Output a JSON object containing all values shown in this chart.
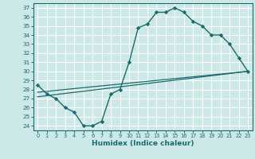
{
  "xlabel": "Humidex (Indice chaleur)",
  "bg_color": "#cde8e8",
  "grid_color": "#ffffff",
  "line_color": "#1a6b6b",
  "xlim": [
    -0.5,
    23.5
  ],
  "ylim": [
    23.5,
    37.5
  ],
  "xticks": [
    0,
    1,
    2,
    3,
    4,
    5,
    6,
    7,
    8,
    9,
    10,
    11,
    12,
    13,
    14,
    15,
    16,
    17,
    18,
    19,
    20,
    21,
    22,
    23
  ],
  "yticks": [
    24,
    25,
    26,
    27,
    28,
    29,
    30,
    31,
    32,
    33,
    34,
    35,
    36,
    37
  ],
  "line1_x": [
    0,
    1,
    2,
    3,
    4,
    5,
    6,
    7,
    8,
    9,
    10,
    11,
    12,
    13,
    14,
    15,
    16,
    17,
    18,
    19,
    20,
    21,
    22,
    23
  ],
  "line1_y": [
    28.5,
    27.5,
    27.0,
    26.0,
    25.5,
    24.0,
    24.0,
    24.5,
    27.5,
    28.0,
    31.0,
    34.8,
    35.2,
    36.5,
    36.5,
    37.0,
    36.5,
    35.5,
    35.0,
    34.0,
    34.0,
    33.0,
    31.5,
    30.0
  ],
  "line2_x": [
    0,
    23
  ],
  "line2_y": [
    27.2,
    30.0
  ],
  "line3_x": [
    0,
    23
  ],
  "line3_y": [
    27.7,
    30.0
  ],
  "tick_fontsize": 5.5,
  "xlabel_fontsize": 6.5
}
